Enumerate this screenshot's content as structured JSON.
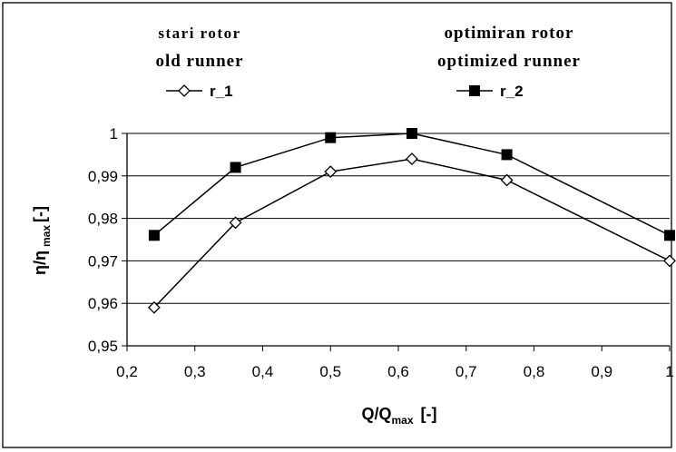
{
  "chart_data": {
    "type": "line",
    "legend": [
      {
        "caption_native": "stari rotor",
        "caption_english": "old runner",
        "series_label": "r_1"
      },
      {
        "caption_native": "optimiran rotor",
        "caption_english": "optimized runner",
        "series_label": "r_2"
      }
    ],
    "xlabel": {
      "main": "Q/Q",
      "sub": "max",
      "suffix": "[-]"
    },
    "ylabel": {
      "main": "η/η",
      "sub": "max",
      "suffix": "[-]"
    },
    "xlim": [
      0.2,
      1.0
    ],
    "ylim": [
      0.95,
      1.0
    ],
    "x_ticks": [
      "0,2",
      "0,3",
      "0,4",
      "0,5",
      "0,6",
      "0,7",
      "0,8",
      "0,9",
      "1"
    ],
    "y_ticks": [
      "0,95",
      "0,96",
      "0,97",
      "0,98",
      "0,99",
      "1"
    ],
    "grid": true,
    "series": [
      {
        "name": "r_1",
        "marker": "diamond-open",
        "x": [
          0.24,
          0.36,
          0.5,
          0.62,
          0.76,
          1.0
        ],
        "y": [
          0.959,
          0.979,
          0.991,
          0.994,
          0.989,
          0.97
        ]
      },
      {
        "name": "r_2",
        "marker": "square-filled",
        "x": [
          0.24,
          0.36,
          0.5,
          0.62,
          0.76,
          1.0
        ],
        "y": [
          0.976,
          0.992,
          0.999,
          1.0,
          0.995,
          0.976
        ]
      }
    ],
    "colors": {
      "line": "#000000",
      "grid": "#000000",
      "background": "#ffffff"
    }
  }
}
